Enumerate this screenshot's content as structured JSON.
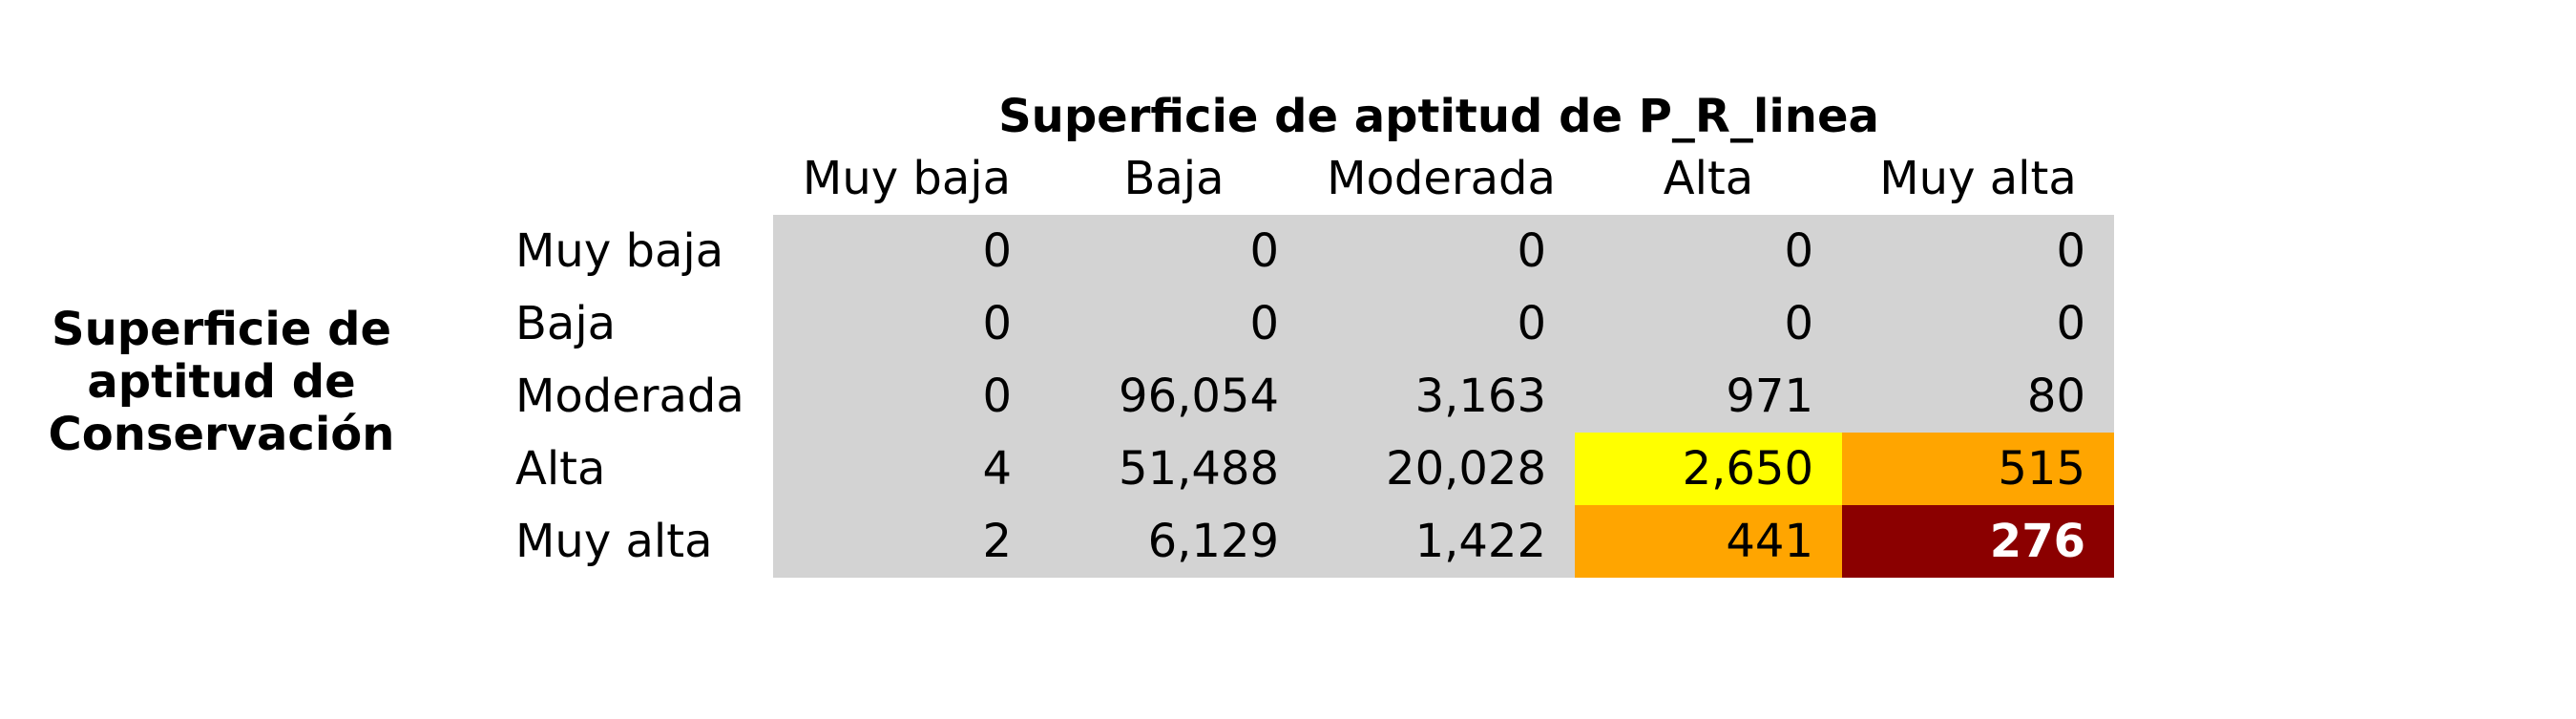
{
  "chart_data": {
    "type": "heatmap",
    "title": "Superficie de aptitud de P_R_linea",
    "row_axis_title": "Superficie de\naptitud de\nConservación",
    "columns": [
      "Muy baja",
      "Baja",
      "Moderada",
      "Alta",
      "Muy alta"
    ],
    "rows": [
      "Muy baja",
      "Baja",
      "Moderada",
      "Alta",
      "Muy alta"
    ],
    "values": [
      [
        "0",
        "0",
        "0",
        "0",
        "0"
      ],
      [
        "0",
        "0",
        "0",
        "0",
        "0"
      ],
      [
        "0",
        "96,054",
        "3,163",
        "971",
        "80"
      ],
      [
        "4",
        "51,488",
        "20,028",
        "2,650",
        "515"
      ],
      [
        "2",
        "6,129",
        "1,422",
        "441",
        "276"
      ]
    ],
    "cell_colors": [
      [
        "#d3d3d3",
        "#d3d3d3",
        "#d3d3d3",
        "#d3d3d3",
        "#d3d3d3"
      ],
      [
        "#d3d3d3",
        "#d3d3d3",
        "#d3d3d3",
        "#d3d3d3",
        "#d3d3d3"
      ],
      [
        "#d3d3d3",
        "#d3d3d3",
        "#d3d3d3",
        "#d3d3d3",
        "#d3d3d3"
      ],
      [
        "#d3d3d3",
        "#d3d3d3",
        "#d3d3d3",
        "#ffff00",
        "#ffa500"
      ],
      [
        "#d3d3d3",
        "#d3d3d3",
        "#d3d3d3",
        "#ffa500",
        "#8b0000"
      ]
    ],
    "text_colors": [
      [
        "#000000",
        "#000000",
        "#000000",
        "#000000",
        "#000000"
      ],
      [
        "#000000",
        "#000000",
        "#000000",
        "#000000",
        "#000000"
      ],
      [
        "#000000",
        "#000000",
        "#000000",
        "#000000",
        "#000000"
      ],
      [
        "#000000",
        "#000000",
        "#000000",
        "#000000",
        "#000000"
      ],
      [
        "#000000",
        "#000000",
        "#000000",
        "#000000",
        "#ffffff"
      ]
    ],
    "bold_cells": [
      [
        4,
        4
      ]
    ]
  }
}
